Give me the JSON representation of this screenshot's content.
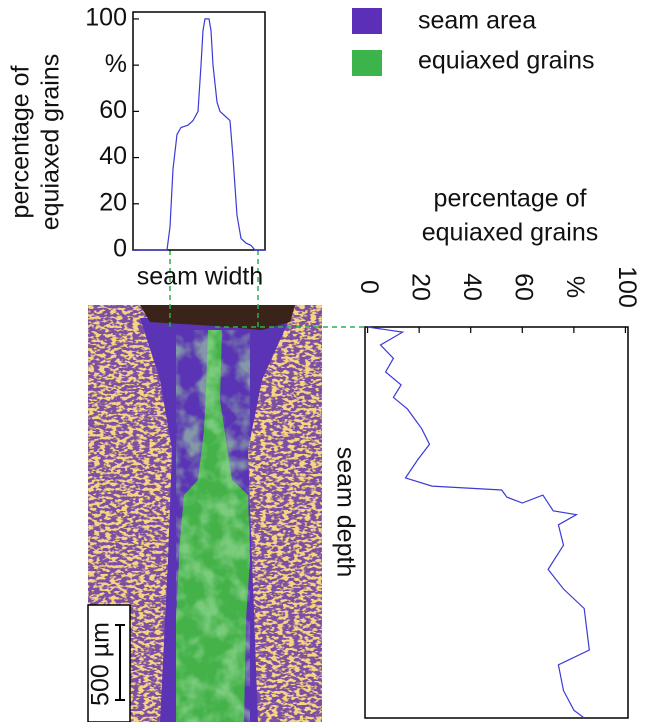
{
  "legend": [
    {
      "name": "seam area",
      "color": "#5b2fb8"
    },
    {
      "name": "equiaxed grains",
      "color": "#3cb44b"
    }
  ],
  "scale_bar_label": "500 µm",
  "chart_data": [
    {
      "type": "line",
      "orientation": "horizontal",
      "ylabel_lines": [
        "percentage of",
        "equiaxed grains"
      ],
      "xlabel": "seam width",
      "color": "#3b3bd6",
      "x": [
        0,
        34,
        37,
        40,
        44,
        48,
        55,
        60,
        65,
        68,
        70,
        72,
        76,
        78,
        80,
        84,
        87,
        92,
        97,
        100,
        104,
        108,
        113,
        118,
        122,
        132
      ],
      "values": [
        0,
        0,
        10,
        35,
        50,
        53,
        54,
        56,
        60,
        80,
        95,
        100,
        100,
        95,
        80,
        64,
        60,
        58,
        56,
        40,
        15,
        5,
        3,
        2,
        0,
        0
      ],
      "xlim": [
        0,
        132
      ],
      "ylim": [
        0,
        103
      ],
      "yticks": [
        0,
        20,
        40,
        60,
        {
          "value": 80,
          "label": "%"
        },
        100
      ]
    },
    {
      "type": "line",
      "orientation": "vertical",
      "title_lines": [
        "percentage of",
        "equiaxed grains"
      ],
      "ylabel": "seam depth",
      "color": "#3b3bd6",
      "x": [
        0,
        1.3,
        4.6,
        8,
        11.5,
        14.8,
        18,
        21,
        26,
        30,
        34,
        38.6,
        40.7,
        41.7,
        43.5,
        45,
        43,
        47,
        48,
        50.6,
        55.8,
        62,
        67,
        72,
        82.6,
        86.4,
        93,
        98,
        100
      ],
      "values": [
        0,
        13.6,
        5,
        10,
        7,
        13,
        10,
        15.5,
        21,
        24,
        19.4,
        14.7,
        25,
        52,
        54,
        60,
        68,
        72,
        81,
        74,
        76,
        70,
        76,
        84,
        86,
        74,
        76,
        80,
        84
      ],
      "xlim": [
        0,
        100
      ],
      "ylim": [
        -1,
        101
      ],
      "yticks": [
        0,
        20,
        40,
        60,
        {
          "value": 80,
          "label": "%"
        },
        100
      ]
    }
  ]
}
